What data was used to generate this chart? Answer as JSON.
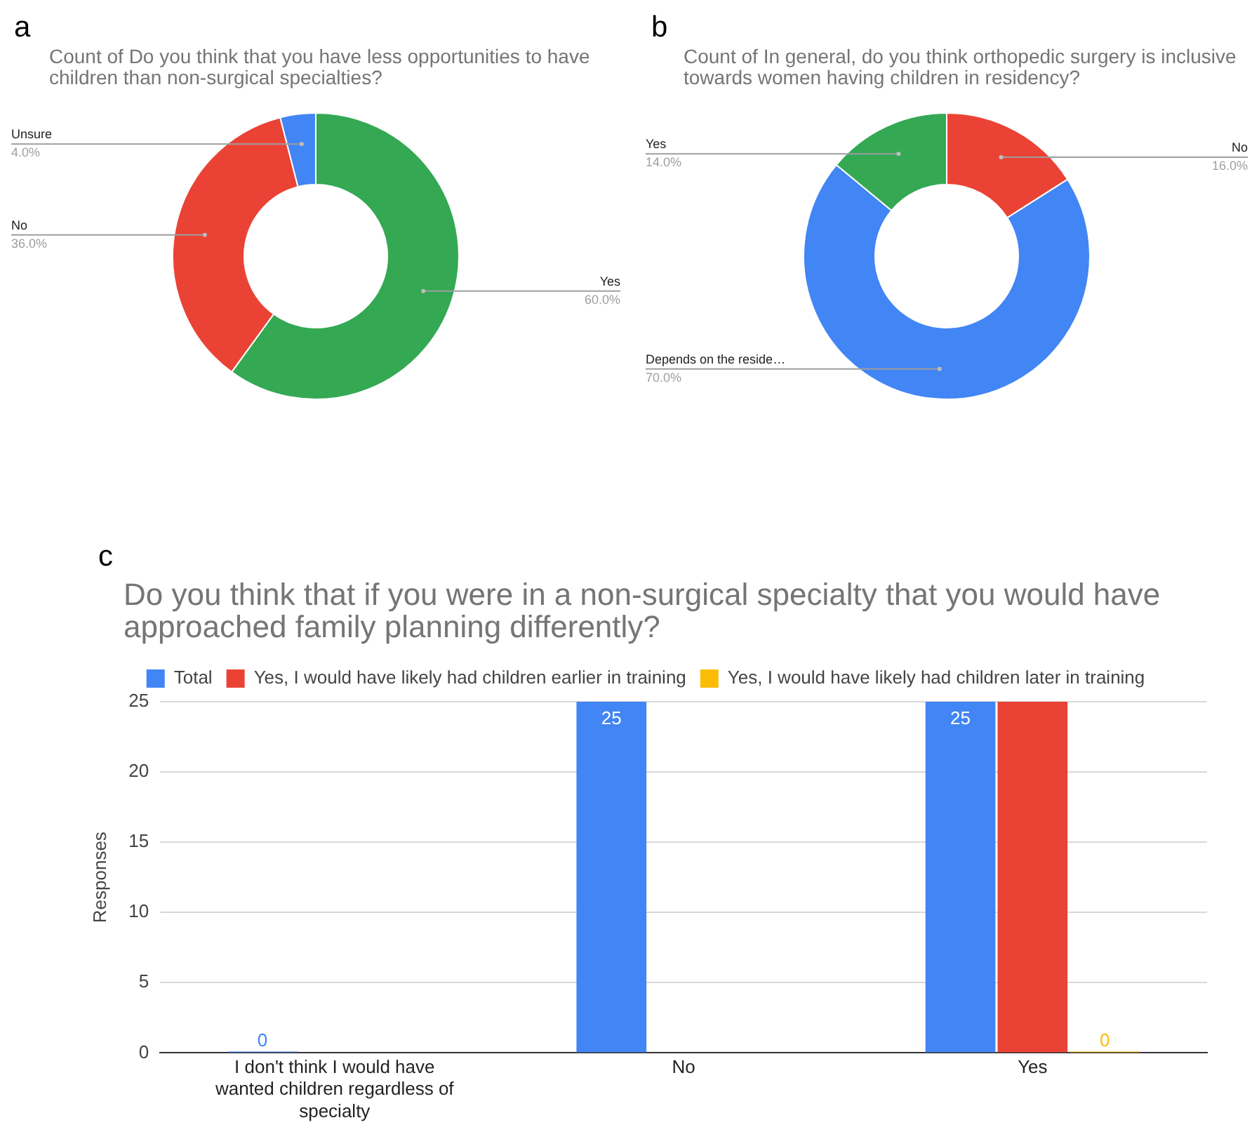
{
  "chart_data": [
    {
      "type": "donut",
      "title": "Count of Do you think that you have less opportunities to have children than non-surgical specialties?",
      "annotations": [
        "a"
      ],
      "categories": [
        "Yes",
        "No",
        "Unsure"
      ],
      "values": [
        60,
        36,
        4
      ],
      "colors": [
        "#34a853",
        "#ea4335",
        "#4285f4"
      ],
      "value_labels": [
        "60.0%",
        "36.0%",
        "4.0%"
      ]
    },
    {
      "type": "donut",
      "title": "Count of In general, do you think orthopedic surgery is inclusive towards women having children in residency?",
      "annotations": [
        "b"
      ],
      "categories": [
        "No",
        "Depends on the reside…",
        "Yes"
      ],
      "values": [
        16,
        70,
        14
      ],
      "colors": [
        "#ea4335",
        "#4285f4",
        "#34a853"
      ],
      "value_labels": [
        "16.0%",
        "70.0%",
        "14.0%"
      ]
    },
    {
      "type": "bar",
      "title": "Do you think that if you were in a non-surgical specialty that you would have approached family planning differently?",
      "annotations": [
        "c"
      ],
      "ylabel": "Responses",
      "categories": [
        "I don't think I would have wanted children regardless of specialty",
        "No",
        "Yes"
      ],
      "series": [
        {
          "name": "Total",
          "color": "#4285f4",
          "values": [
            0,
            25,
            25
          ],
          "value_labels": [
            "0",
            "25",
            "25"
          ]
        },
        {
          "name": "Yes, I would have likely had children earlier in training",
          "color": "#ea4335",
          "values": [
            null,
            null,
            25
          ]
        },
        {
          "name": "Yes, I would have likely had children later in training",
          "color": "#fbbc04",
          "values": [
            null,
            null,
            0
          ],
          "value_labels": [
            null,
            null,
            "0"
          ]
        }
      ],
      "ylim": [
        0,
        25
      ],
      "yticks": [
        0,
        5,
        10,
        15,
        20,
        25
      ],
      "grid": "y",
      "legend": "top"
    }
  ]
}
